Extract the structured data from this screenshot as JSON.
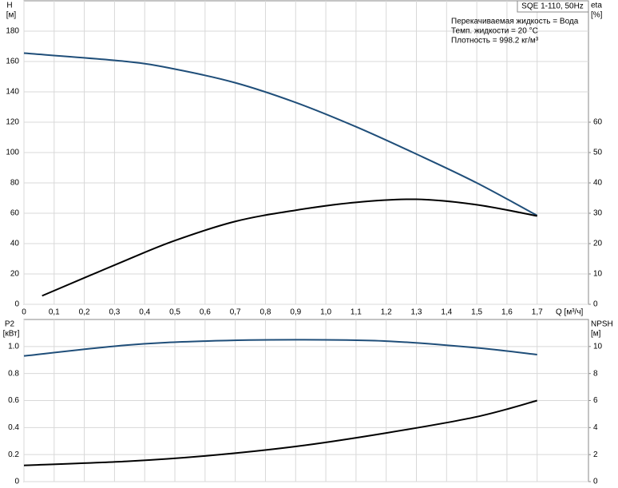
{
  "chart_data": [
    {
      "type": "line",
      "title": "SQE 1-110, 50Hz",
      "annotations": [
        "Перекачиваемая жидкость = Вода",
        "Темп. жидкости = 20 °C",
        "Плотность = 998.2 кг/м³"
      ],
      "ylabel": [
        "H",
        "[м]"
      ],
      "y2label": [
        "eta",
        "[%]"
      ],
      "xlabel": "Q [м³/ч]",
      "xlim": [
        0,
        1.87
      ],
      "xticks": [
        0,
        {
          "value": 0.1,
          "label": "0,1"
        },
        {
          "value": 0.2,
          "label": "0,2"
        },
        {
          "value": 0.3,
          "label": "0,3"
        },
        {
          "value": 0.4,
          "label": "0,4"
        },
        {
          "value": 0.5,
          "label": "0,5"
        },
        {
          "value": 0.6,
          "label": "0,6"
        },
        {
          "value": 0.7,
          "label": "0,7"
        },
        {
          "value": 0.8,
          "label": "0,8"
        },
        {
          "value": 0.9,
          "label": "0,9"
        },
        {
          "value": 1.0,
          "label": "1,0"
        },
        {
          "value": 1.1,
          "label": "1,1"
        },
        {
          "value": 1.2,
          "label": "1,2"
        },
        {
          "value": 1.3,
          "label": "1,3"
        },
        {
          "value": 1.4,
          "label": "1,4"
        },
        {
          "value": 1.5,
          "label": "1,5"
        },
        {
          "value": 1.6,
          "label": "1,6"
        },
        {
          "value": 1.7,
          "label": "1,7"
        }
      ],
      "ylim": [
        0,
        200
      ],
      "yticks": [
        0,
        20,
        40,
        60,
        80,
        100,
        120,
        140,
        160,
        180
      ],
      "y2lim": [
        0,
        100
      ],
      "y2ticks": [
        0,
        10,
        20,
        30,
        40,
        50,
        60
      ],
      "grid": true,
      "series": [
        {
          "name": "H",
          "color": "#1f4e79",
          "x": [
            0,
            0.34,
            0.5,
            0.7,
            0.9,
            1.1,
            1.3,
            1.5,
            1.7
          ],
          "values": [
            165.5,
            160,
            155,
            146,
            133,
            117,
            99,
            80,
            58.5
          ]
        },
        {
          "name": "eta",
          "color": "#000000",
          "axis": "y2",
          "x": [
            0.06,
            0.34,
            0.5,
            0.7,
            0.9,
            1.1,
            1.3,
            1.5,
            1.7
          ],
          "values": [
            2.8,
            14.6,
            21,
            27.3,
            31,
            33.6,
            34.6,
            32.8,
            29.1
          ]
        }
      ]
    },
    {
      "type": "line",
      "ylabel": [
        "P2",
        "[кВт]"
      ],
      "y2label": [
        "NPSH",
        "[м]"
      ],
      "xlim": [
        0,
        1.87
      ],
      "ylim": [
        0,
        1.2
      ],
      "yticks": [
        0,
        0.2,
        0.4,
        0.6,
        0.8,
        {
          "value": 1,
          "label": "1.0"
        }
      ],
      "y2lim": [
        0,
        12
      ],
      "y2ticks": [
        0,
        2,
        4,
        6,
        8,
        10
      ],
      "grid": true,
      "series": [
        {
          "name": "P2",
          "color": "#1f4e79",
          "x": [
            0,
            0.34,
            0.6,
            0.9,
            1.2,
            1.5,
            1.7
          ],
          "values": [
            0.93,
            1.01,
            1.04,
            1.05,
            1.04,
            0.99,
            0.94
          ]
        },
        {
          "name": "NPSH",
          "color": "#000000",
          "axis": "y2",
          "x": [
            0,
            0.34,
            0.6,
            0.9,
            1.2,
            1.5,
            1.7
          ],
          "values": [
            1.2,
            1.5,
            1.9,
            2.6,
            3.6,
            4.8,
            6.0
          ]
        }
      ]
    }
  ]
}
